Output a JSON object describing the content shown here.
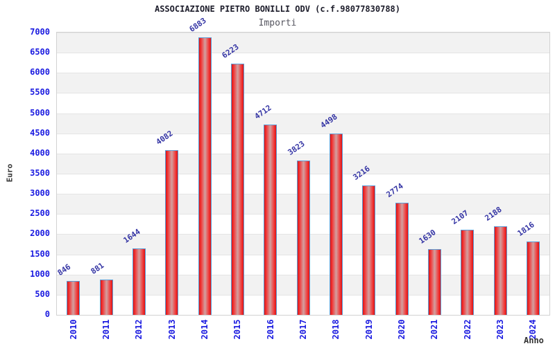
{
  "header": {
    "title": "ASSOCIAZIONE PIETRO BONILLI ODV (c.f.98077830788)",
    "subtitle": "Importi"
  },
  "axes": {
    "y_label": "Euro",
    "x_label": "Anno"
  },
  "colors": {
    "tick_blue": "#1a1ae0",
    "value_label_blue": "#3434a4",
    "bar_red": "#dd1414",
    "bar_center": "#d3a0a0",
    "bar_border_blue": "#5b9bd5",
    "band_gray": "#f2f2f2",
    "band_white": "#ffffff",
    "grid_line": "#e4e4e4",
    "plot_border": "#d2d2d2",
    "title_color": "#1c1c2a",
    "subtitle_color": "#55555f"
  },
  "chart_data": {
    "type": "bar",
    "title": "ASSOCIAZIONE PIETRO BONILLI ODV (c.f.98077830788)",
    "subtitle": "Importi",
    "xlabel": "Anno",
    "ylabel": "Euro",
    "categories": [
      "2010",
      "2011",
      "2012",
      "2013",
      "2014",
      "2015",
      "2016",
      "2017",
      "2018",
      "2019",
      "2020",
      "2021",
      "2022",
      "2023",
      "2024"
    ],
    "values": [
      846,
      881,
      1644,
      4082,
      6883,
      6223,
      4712,
      3823,
      4498,
      3216,
      2774,
      1630,
      2107,
      2188,
      1816
    ],
    "ylim": [
      0,
      7000
    ],
    "ytick_step": 500,
    "grid": "horizontal alternating gray/white bands every 500",
    "legend": "none",
    "bar_value_labels": true
  }
}
